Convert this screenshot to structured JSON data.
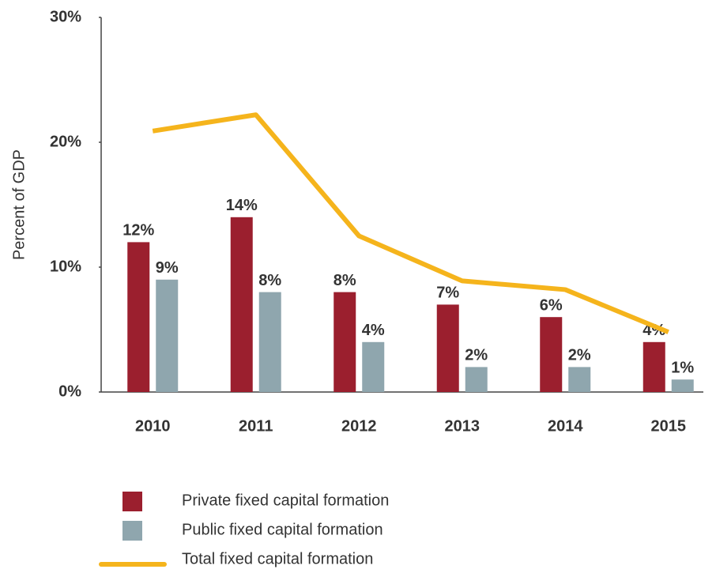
{
  "chart_data": {
    "type": "bar",
    "y_label": "Percent of GDP",
    "categories": [
      "2010",
      "2011",
      "2012",
      "2013",
      "2014",
      "2015"
    ],
    "series": [
      {
        "name": "Private fixed capital formation",
        "type": "bar",
        "color": "#9b1f2e",
        "values": [
          12,
          14,
          8,
          7,
          6,
          4
        ],
        "value_labels": [
          "12%",
          "14%",
          "8%",
          "7%",
          "6%",
          "4%"
        ]
      },
      {
        "name": "Public fixed capital formation",
        "type": "bar",
        "color": "#8fa6ae",
        "values": [
          9,
          8,
          4,
          2,
          2,
          1
        ],
        "value_labels": [
          "9%",
          "8%",
          "4%",
          "2%",
          "2%",
          "1%"
        ]
      },
      {
        "name": "Total fixed capital formation",
        "type": "line",
        "color": "#f5b41c",
        "values": [
          20.9,
          22.2,
          12.5,
          8.9,
          8.2,
          4.8
        ]
      }
    ],
    "ylim": [
      0,
      30
    ],
    "yticks": [
      {
        "value": 0,
        "label": "0%"
      },
      {
        "value": 10,
        "label": "10%"
      },
      {
        "value": 20,
        "label": "20%"
      },
      {
        "value": 30,
        "label": "30%"
      }
    ],
    "grid": false,
    "legend": "bottom"
  }
}
